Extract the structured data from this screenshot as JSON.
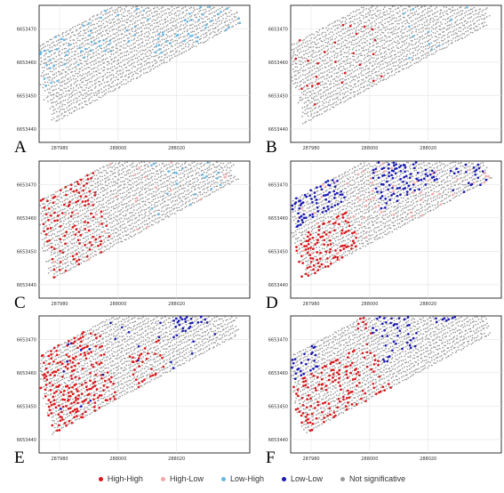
{
  "chart_data": {
    "type": "scatter",
    "panels": [
      {
        "label": "A",
        "pattern": "A"
      },
      {
        "label": "B",
        "pattern": "B"
      },
      {
        "label": "C",
        "pattern": "C"
      },
      {
        "label": "D",
        "pattern": "D"
      },
      {
        "label": "E",
        "pattern": "E"
      },
      {
        "label": "F",
        "pattern": "F"
      }
    ],
    "x_ticks": [
      "287980",
      "288000",
      "288020"
    ],
    "y_ticks": [
      "6653440",
      "6653450",
      "6653460",
      "6653470"
    ],
    "xlim": [
      287973,
      288045
    ],
    "ylim": [
      6653436,
      6653477
    ],
    "legend": [
      {
        "name": "High-High",
        "color": "#d7191c"
      },
      {
        "name": "High-Low",
        "color": "#f4a9a8"
      },
      {
        "name": "Low-High",
        "color": "#6ab7e0"
      },
      {
        "name": "Low-Low",
        "color": "#1a1ab0"
      },
      {
        "name": "Not significative",
        "color": "#999999"
      }
    ],
    "legend_position": "bottom"
  }
}
